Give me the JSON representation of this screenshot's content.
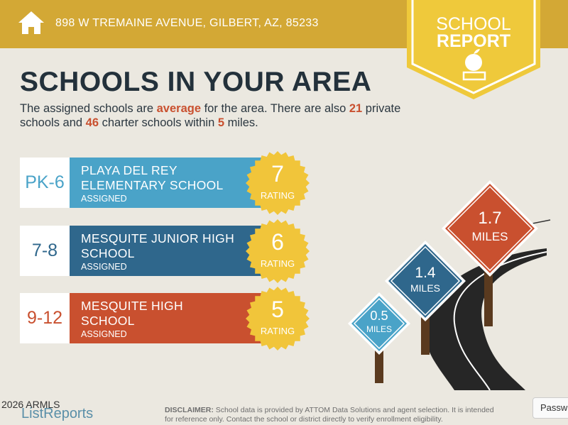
{
  "header": {
    "address": "898 W TREMAINE AVENUE, GILBERT, AZ, 85233",
    "badge_line1": "SCHOOL",
    "badge_line2": "REPORT",
    "icon": "home-icon"
  },
  "title": "SCHOOLS IN YOUR AREA",
  "summary": {
    "p1": "The assigned schools are ",
    "quality": "average",
    "p2": " for the area. There are also ",
    "private_count": "21",
    "p3": " private schools and ",
    "charter_count": "46",
    "p4": " charter schools within ",
    "miles": "5",
    "p5": " miles."
  },
  "schools": [
    {
      "grade": "PK-6",
      "name_l1": "PLAYA DEL REY",
      "name_l2": "ELEMENTARY SCHOOL",
      "status": "ASSIGNED",
      "rating": "7",
      "rating_label": "RATING",
      "color": "#4aa3c8",
      "distance": "0.5",
      "distance_unit": "MILES"
    },
    {
      "grade": "7-8",
      "name_l1": "MESQUITE JUNIOR HIGH",
      "name_l2": "SCHOOL",
      "status": "ASSIGNED",
      "rating": "6",
      "rating_label": "RATING",
      "color": "#2f678c",
      "distance": "1.4",
      "distance_unit": "MILES"
    },
    {
      "grade": "9-12",
      "name_l1": "MESQUITE HIGH",
      "name_l2": "SCHOOL",
      "status": "ASSIGNED",
      "rating": "5",
      "rating_label": "RATING",
      "color": "#c9502f",
      "distance": "1.7",
      "distance_unit": "MILES"
    }
  ],
  "footer": {
    "copyright": "2026 ARMLS",
    "logo": "ListReports",
    "disclaimer_label": "DISCLAIMER:",
    "disclaimer_l1": " School data is provided by ATTOM Data Solutions and agent selection. It is intended",
    "disclaimer_l2": "for reference only. Contact the school or district directly to verify enrollment eligibility.",
    "password_tab": "Passw"
  },
  "colors": {
    "header": "#d3a835",
    "badge": "#efc93b",
    "background": "#ebe8e0",
    "title": "#23313b",
    "accent": "#c9502f"
  }
}
